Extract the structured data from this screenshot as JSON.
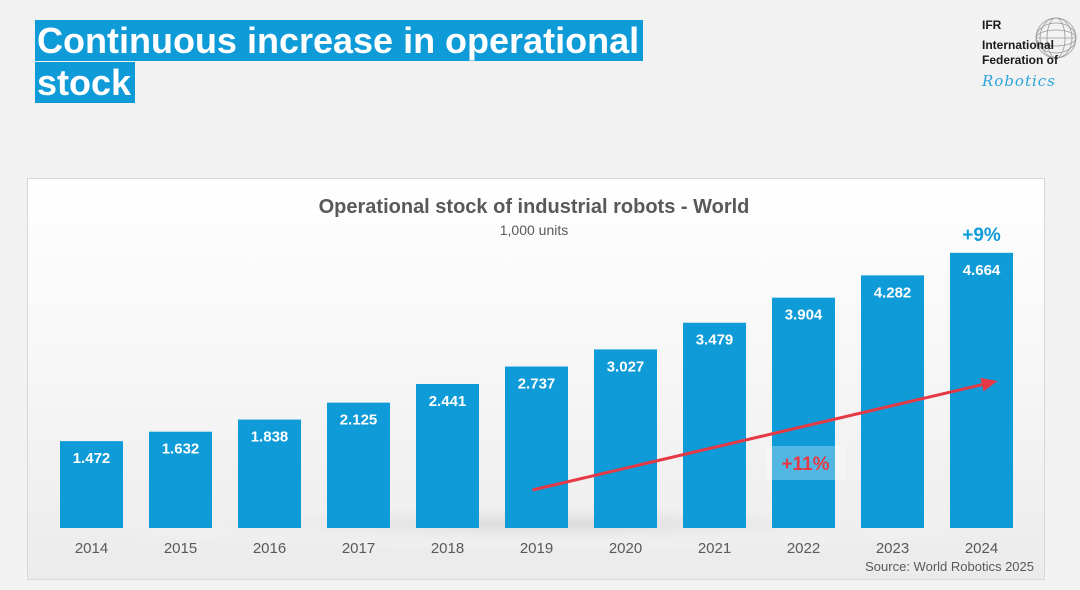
{
  "slide": {
    "title_line1": "Continuous increase in operational",
    "title_line2": "stock"
  },
  "logo": {
    "line1": "IFR",
    "line2": "International",
    "line3": "Federation of",
    "line4": "Robotics"
  },
  "colors": {
    "accent": "#0f9bd7",
    "title_bg": "#0f9bd7",
    "bar": "#0f9bd7",
    "trend_arrow": "#e63946",
    "growth_label": "#e63946",
    "last_growth": "#0f9bd7"
  },
  "chart_data": {
    "type": "bar",
    "title": "Operational stock of industrial robots - World",
    "subtitle": "1,000 units",
    "xlabel": "",
    "ylabel": "",
    "categories": [
      "2014",
      "2015",
      "2016",
      "2017",
      "2018",
      "2019",
      "2020",
      "2021",
      "2022",
      "2023",
      "2024"
    ],
    "values": [
      1.472,
      1.632,
      1.838,
      2.125,
      2.441,
      2.737,
      3.027,
      3.479,
      3.904,
      4.282,
      4.664
    ],
    "value_labels": [
      "1.472",
      "1.632",
      "1.838",
      "2.125",
      "2.441",
      "2.737",
      "3.027",
      "3.479",
      "3.904",
      "4.282",
      "4.664"
    ],
    "ylim": [
      0,
      5.0
    ],
    "grid": false,
    "annotations": {
      "trend_growth": "+11%",
      "last_year_growth": "+9%",
      "trend_from": "2019",
      "trend_to": "2024"
    },
    "source": "Source: World Robotics 2025"
  }
}
